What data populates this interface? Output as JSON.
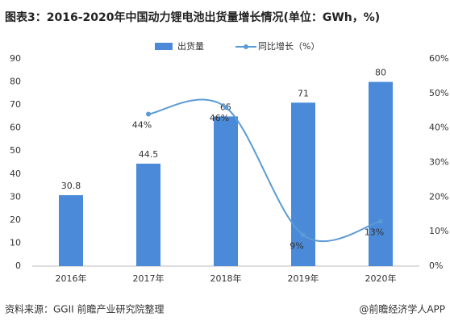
{
  "chart_data": {
    "type": "combo",
    "title": "图表3：2016-2020年中国动力锂电池出货量增长情况(单位：GWh，%)",
    "categories": [
      "2016年",
      "2017年",
      "2018年",
      "2019年",
      "2020年"
    ],
    "series": [
      {
        "name": "出货量",
        "type": "bar",
        "color": "#4a8ad8",
        "values": [
          30.8,
          44.5,
          65,
          71,
          80
        ]
      },
      {
        "name": "同比增长（%）",
        "type": "line",
        "axis": "y2",
        "color": "#5b9bd5",
        "values": [
          null,
          44,
          46,
          9,
          13
        ],
        "value_labels": [
          null,
          "44%",
          "46%",
          "9%",
          "13%"
        ]
      }
    ],
    "ylim": [
      0,
      90
    ],
    "yticks": [
      0,
      10,
      20,
      30,
      40,
      50,
      60,
      70,
      80,
      90
    ],
    "y2lim": [
      0,
      60
    ],
    "y2ticks": [
      {
        "value": 0,
        "label": "0%"
      },
      {
        "value": 10,
        "label": "10%"
      },
      {
        "value": 20,
        "label": "20%"
      },
      {
        "value": 30,
        "label": "30%"
      },
      {
        "value": 40,
        "label": "40%"
      },
      {
        "value": 50,
        "label": "50%"
      },
      {
        "value": 60,
        "label": "60%"
      }
    ],
    "legend": "top"
  },
  "footer": {
    "source": "资料来源：GGII 前瞻产业研究院整理",
    "credit": "@前瞻经济学人APP"
  }
}
